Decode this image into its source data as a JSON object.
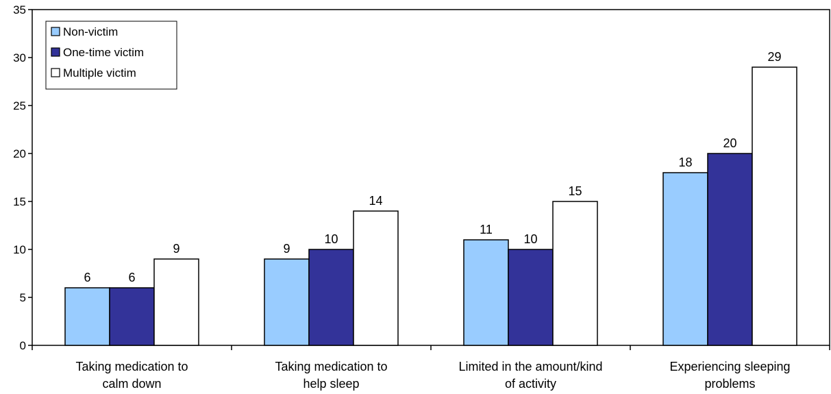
{
  "chart_data": {
    "type": "bar",
    "title": "",
    "xlabel": "",
    "ylabel": "",
    "ylim": [
      0,
      35
    ],
    "yticks": [
      0,
      5,
      10,
      15,
      20,
      25,
      30,
      35
    ],
    "grid": false,
    "legend_position": "top-left",
    "categories": [
      [
        "Taking medication to",
        "calm down"
      ],
      [
        "Taking medication to",
        "help sleep"
      ],
      [
        "Limited in the amount/kind",
        "of activity"
      ],
      [
        "Experiencing sleeping",
        "problems"
      ]
    ],
    "series": [
      {
        "name": "Non-victim",
        "color": "#99ccff",
        "values": [
          6,
          9,
          11,
          18
        ]
      },
      {
        "name": "One-time victim",
        "color": "#333399",
        "values": [
          6,
          10,
          10,
          20
        ]
      },
      {
        "name": "Multiple victim",
        "color": "#ffffff",
        "values": [
          9,
          14,
          15,
          29
        ]
      }
    ]
  }
}
